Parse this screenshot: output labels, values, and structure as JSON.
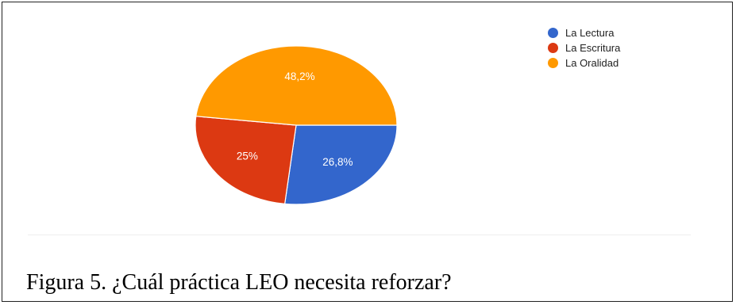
{
  "chart_data": {
    "type": "pie",
    "categories": [
      "La Lectura",
      "La Escritura",
      "La Oralidad"
    ],
    "values": [
      26.8,
      25,
      48.2
    ],
    "data_labels": [
      "26,8%",
      "25%",
      "48,2%"
    ],
    "colors": [
      "#3366cc",
      "#dc3912",
      "#ff9900"
    ],
    "legend_position": "top-right",
    "title": ""
  },
  "figure": {
    "caption": "Figura 5. ¿Cuál práctica LEO necesita reforzar?"
  }
}
